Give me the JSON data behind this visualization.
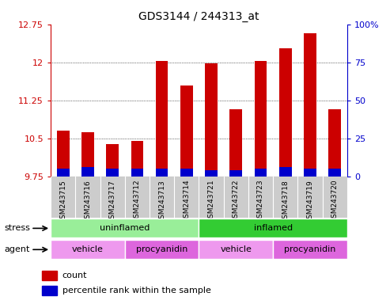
{
  "title": "GDS3144 / 244313_at",
  "samples": [
    "GSM243715",
    "GSM243716",
    "GSM243717",
    "GSM243712",
    "GSM243713",
    "GSM243714",
    "GSM243721",
    "GSM243722",
    "GSM243723",
    "GSM243718",
    "GSM243719",
    "GSM243720"
  ],
  "count_values": [
    10.65,
    10.62,
    10.38,
    10.45,
    12.02,
    11.55,
    11.98,
    11.08,
    12.02,
    12.28,
    12.58,
    11.08
  ],
  "percentile_values": [
    5,
    6,
    5,
    5,
    5,
    5,
    4,
    4,
    5,
    6,
    5,
    5
  ],
  "ymin": 9.75,
  "ymax": 12.75,
  "yticks": [
    9.75,
    10.5,
    11.25,
    12.0,
    12.75
  ],
  "ytick_labels": [
    "9.75",
    "10.5",
    "11.25",
    "12",
    "12.75"
  ],
  "right_yticks": [
    0,
    25,
    50,
    75,
    100
  ],
  "right_ytick_labels": [
    "0",
    "25",
    "50",
    "75",
    "100%"
  ],
  "bar_color": "#cc0000",
  "percentile_color": "#0000cc",
  "bar_width": 0.5,
  "stress_groups": [
    {
      "label": "uninflamed",
      "start": 0,
      "end": 6,
      "color": "#99ee99"
    },
    {
      "label": "inflamed",
      "start": 6,
      "end": 12,
      "color": "#33cc33"
    }
  ],
  "agent_groups": [
    {
      "label": "vehicle",
      "start": 0,
      "end": 3,
      "color": "#ee99ee"
    },
    {
      "label": "procyanidin",
      "start": 3,
      "end": 6,
      "color": "#dd66dd"
    },
    {
      "label": "vehicle",
      "start": 6,
      "end": 9,
      "color": "#ee99ee"
    },
    {
      "label": "procyanidin",
      "start": 9,
      "end": 12,
      "color": "#dd66dd"
    }
  ],
  "legend_count_color": "#cc0000",
  "legend_percentile_color": "#0000cc",
  "left_axis_color": "#cc0000",
  "right_axis_color": "#0000cc",
  "xticklabel_bg": "#cccccc",
  "stress_label": "stress",
  "agent_label": "agent"
}
